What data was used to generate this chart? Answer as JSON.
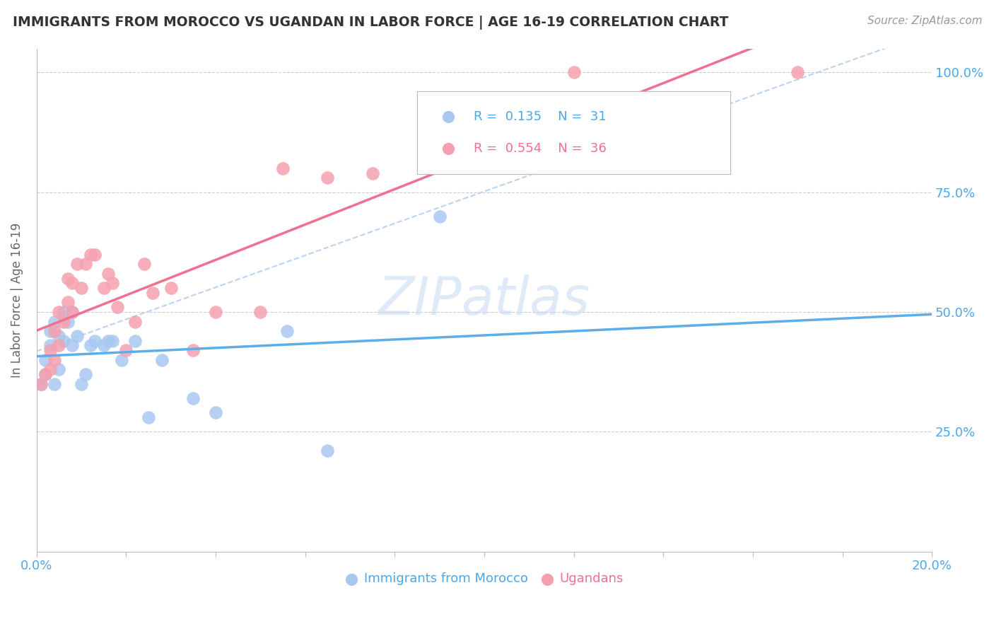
{
  "title": "IMMIGRANTS FROM MOROCCO VS UGANDAN IN LABOR FORCE | AGE 16-19 CORRELATION CHART",
  "source": "Source: ZipAtlas.com",
  "ylabel": "In Labor Force | Age 16-19",
  "xlim": [
    0.0,
    0.2
  ],
  "ylim": [
    0.0,
    1.05
  ],
  "yticks": [
    0.0,
    0.25,
    0.5,
    0.75,
    1.0
  ],
  "ytick_labels": [
    "",
    "25.0%",
    "50.0%",
    "75.0%",
    "100.0%"
  ],
  "xticks": [
    0.0,
    0.02,
    0.04,
    0.06,
    0.08,
    0.1,
    0.12,
    0.14,
    0.16,
    0.18,
    0.2
  ],
  "morocco_color": "#a8c8f0",
  "uganda_color": "#f5a0b0",
  "morocco_line_color": "#5baee8",
  "uganda_line_color": "#f07090",
  "dash_line_color": "#b0ccee",
  "morocco_R": 0.135,
  "morocco_N": 31,
  "uganda_R": 0.554,
  "uganda_N": 36,
  "watermark": "ZIPatlas",
  "morocco_x": [
    0.001,
    0.002,
    0.002,
    0.003,
    0.003,
    0.004,
    0.004,
    0.005,
    0.005,
    0.006,
    0.006,
    0.007,
    0.008,
    0.008,
    0.009,
    0.01,
    0.011,
    0.012,
    0.013,
    0.015,
    0.016,
    0.017,
    0.019,
    0.022,
    0.025,
    0.028,
    0.035,
    0.04,
    0.056,
    0.065,
    0.09
  ],
  "morocco_y": [
    0.35,
    0.37,
    0.4,
    0.43,
    0.46,
    0.35,
    0.48,
    0.38,
    0.45,
    0.5,
    0.44,
    0.48,
    0.43,
    0.5,
    0.45,
    0.35,
    0.37,
    0.43,
    0.44,
    0.43,
    0.44,
    0.44,
    0.4,
    0.44,
    0.28,
    0.4,
    0.32,
    0.29,
    0.46,
    0.21,
    0.7
  ],
  "uganda_x": [
    0.001,
    0.002,
    0.003,
    0.003,
    0.004,
    0.004,
    0.005,
    0.005,
    0.006,
    0.007,
    0.007,
    0.008,
    0.008,
    0.009,
    0.01,
    0.011,
    0.012,
    0.013,
    0.015,
    0.016,
    0.017,
    0.018,
    0.02,
    0.022,
    0.024,
    0.026,
    0.03,
    0.035,
    0.04,
    0.05,
    0.055,
    0.065,
    0.075,
    0.095,
    0.12,
    0.17
  ],
  "uganda_y": [
    0.35,
    0.37,
    0.38,
    0.42,
    0.4,
    0.46,
    0.43,
    0.5,
    0.48,
    0.52,
    0.57,
    0.5,
    0.56,
    0.6,
    0.55,
    0.6,
    0.62,
    0.62,
    0.55,
    0.58,
    0.56,
    0.51,
    0.42,
    0.48,
    0.6,
    0.54,
    0.55,
    0.42,
    0.5,
    0.5,
    0.8,
    0.78,
    0.79,
    0.82,
    1.0,
    1.0
  ]
}
